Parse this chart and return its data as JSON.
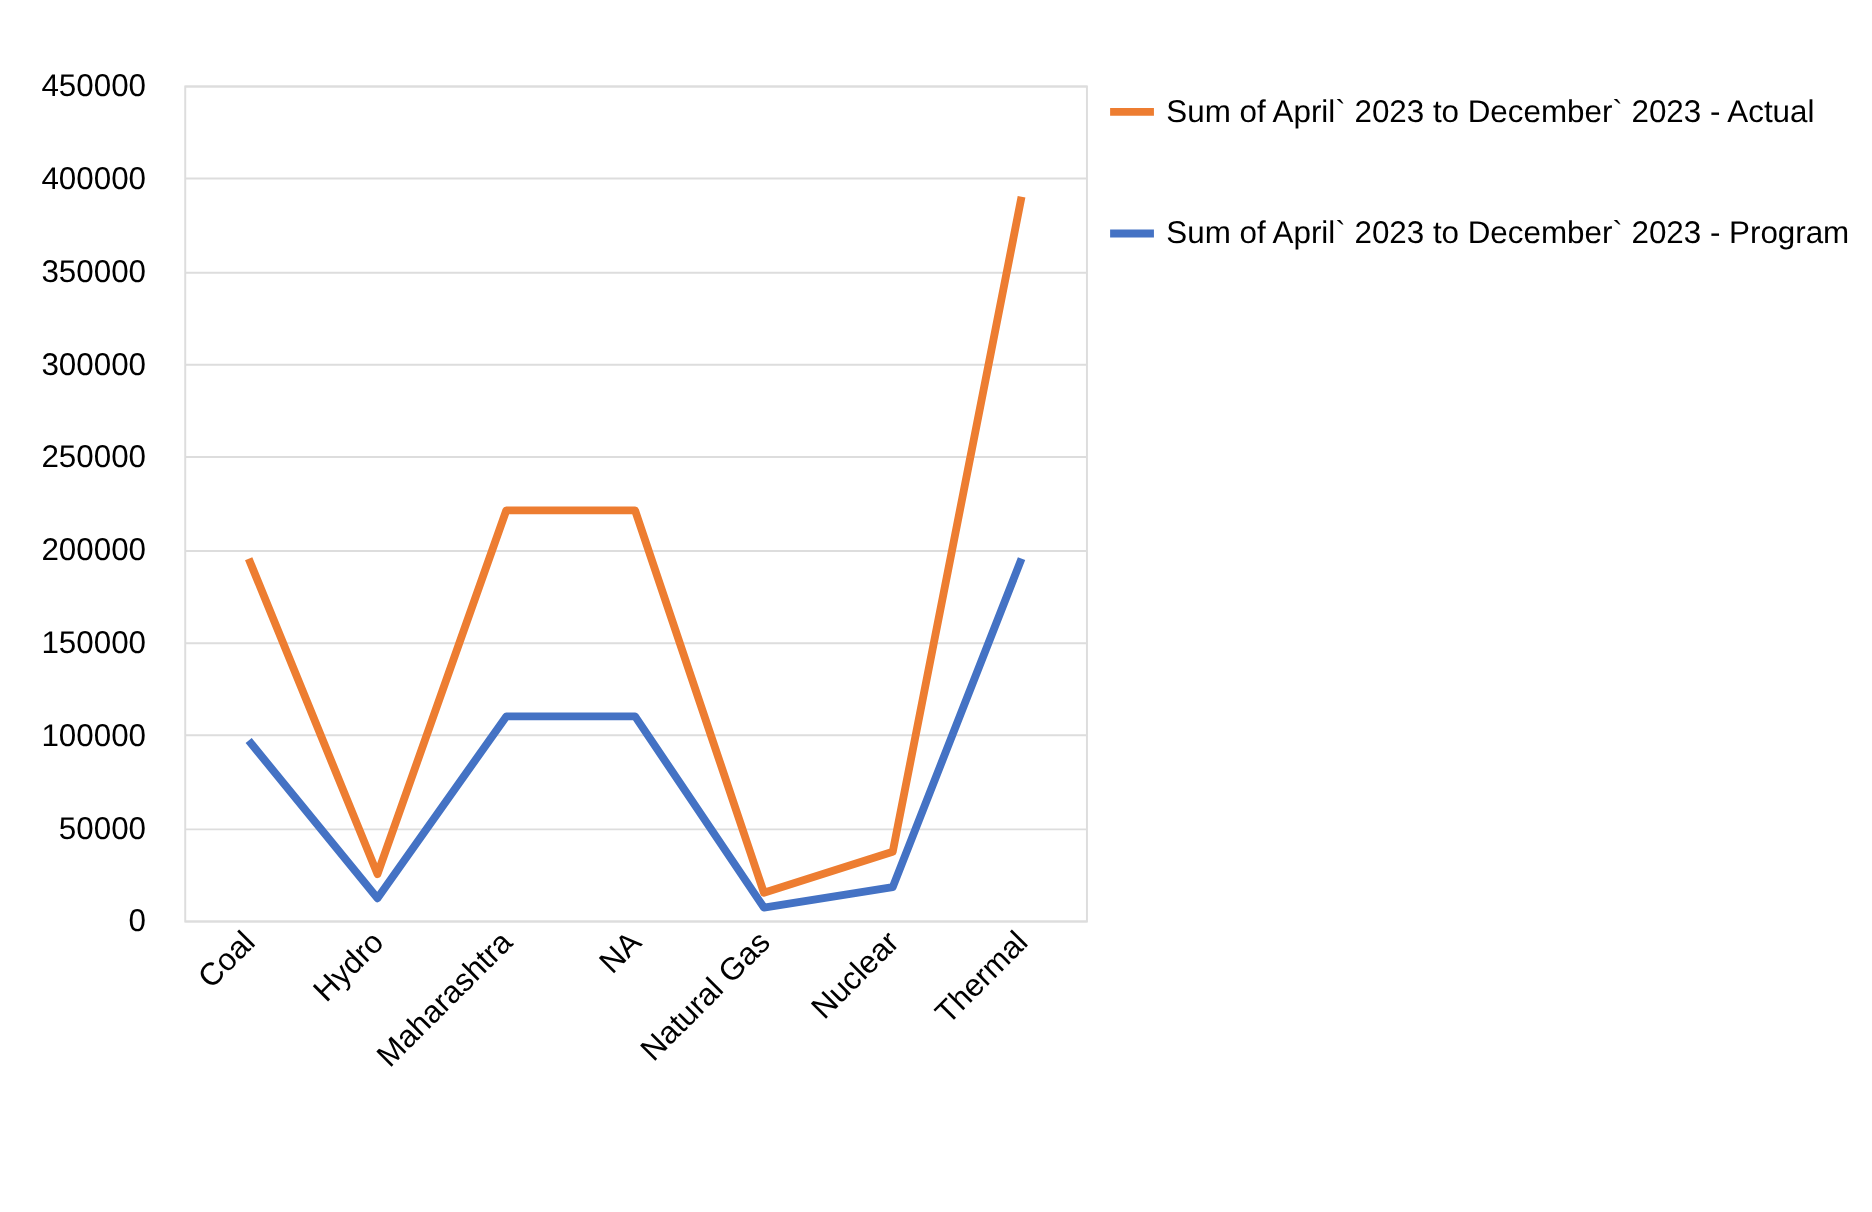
{
  "chart_data": {
    "type": "line",
    "categories": [
      "Coal",
      "Hydro",
      "Maharashtra",
      "NA",
      "Natural Gas",
      "Nuclear",
      "Thermal"
    ],
    "series": [
      {
        "name": "Sum of April` 2023 to December` 2023 - Actual",
        "color": "#ed7d31",
        "values": [
          195000,
          25000,
          221000,
          221000,
          15000,
          37000,
          390000
        ]
      },
      {
        "name": "Sum of April` 2023 to December` 2023 - Program",
        "color": "#4472c4",
        "values": [
          97000,
          12000,
          110000,
          110000,
          7000,
          18000,
          195000
        ]
      }
    ],
    "ylim": [
      0,
      450000
    ],
    "yticks": [
      0,
      50000,
      100000,
      150000,
      200000,
      250000,
      300000,
      350000,
      400000,
      450000
    ],
    "grid": "y",
    "legend": "right",
    "marker": "none",
    "line_style": "solid"
  }
}
